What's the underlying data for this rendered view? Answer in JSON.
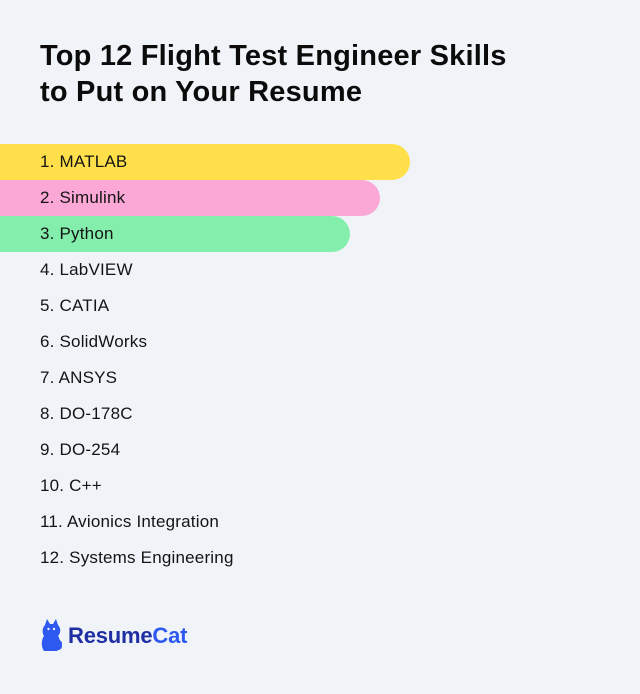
{
  "title": {
    "line1": "Top 12 Flight Test Engineer Skills",
    "line2": "to Put on Your Resume"
  },
  "skills": [
    {
      "label": "1. MATLAB",
      "highlight": "#ffe04a"
    },
    {
      "label": "2. Simulink",
      "highlight": "#fba8d6"
    },
    {
      "label": "3. Python",
      "highlight": "#84efac"
    },
    {
      "label": "4. LabVIEW"
    },
    {
      "label": "5. CATIA"
    },
    {
      "label": "6. SolidWorks"
    },
    {
      "label": "7. ANSYS"
    },
    {
      "label": "8. DO-178C"
    },
    {
      "label": "9. DO-254"
    },
    {
      "label": "10. C++"
    },
    {
      "label": "11. Avionics Integration"
    },
    {
      "label": "12. Systems Engineering"
    }
  ],
  "logo": {
    "icon": "cat-icon",
    "name_part1": "Resume",
    "name_part2": "Cat",
    "color": "#2d59f0"
  }
}
